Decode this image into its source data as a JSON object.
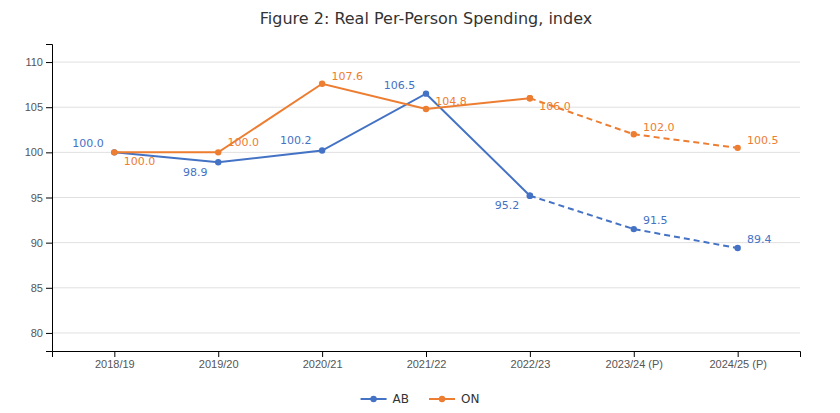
{
  "chart_data": {
    "type": "line",
    "title": "Figure 2: Real Per-Person Spending, index",
    "categories": [
      "2018/19",
      "2019/20",
      "2020/21",
      "2021/22",
      "2022/23",
      "2023/24 (P)",
      "2024/25 (P)"
    ],
    "series": [
      {
        "name": "AB",
        "color": "#4472C4",
        "line_style": "solid",
        "marker": "circle",
        "values": [
          100.0,
          98.9,
          100.2,
          106.5,
          95.2,
          null,
          null
        ],
        "value_labels": [
          "100.0",
          "98.9",
          "100.2",
          "106.5",
          "95.2",
          null,
          null
        ]
      },
      {
        "name": "AB",
        "color": "#4472C4",
        "line_style": "dashed",
        "marker": "circle",
        "values": [
          null,
          null,
          null,
          null,
          95.2,
          91.5,
          89.4
        ],
        "value_labels": [
          null,
          null,
          null,
          null,
          null,
          "91.5",
          "89.4"
        ]
      },
      {
        "name": "ON",
        "color": "#ED7D31",
        "line_style": "solid",
        "marker": "circle",
        "values": [
          100.0,
          100.0,
          107.6,
          104.8,
          106.0,
          null,
          null
        ],
        "value_labels": [
          "100.0",
          "100.0",
          "107.6",
          "104.8",
          "106.0",
          null,
          null
        ]
      },
      {
        "name": "ON",
        "color": "#ED7D31",
        "line_style": "dashed",
        "marker": "circle",
        "values": [
          null,
          null,
          null,
          null,
          106.0,
          102.0,
          100.5
        ],
        "value_labels": [
          null,
          null,
          null,
          null,
          null,
          "102.0",
          "100.5"
        ]
      }
    ],
    "ylim": [
      78,
      112
    ],
    "yticks": [
      80,
      85,
      90,
      95,
      100,
      105,
      110
    ],
    "grid": true,
    "legend": "bottom",
    "data_labels": true
  }
}
